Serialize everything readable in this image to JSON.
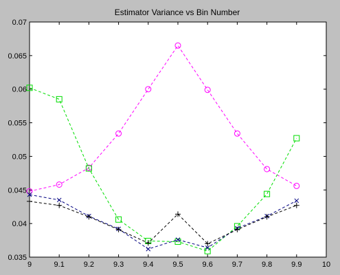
{
  "chart_data": {
    "type": "line",
    "title": "Estimator Variance vs Bin Number",
    "xlabel": "",
    "ylabel": "",
    "xlim": [
      9,
      10
    ],
    "ylim": [
      0.035,
      0.07
    ],
    "grid": false,
    "x_ticks": [
      "9",
      "9.1",
      "9.2",
      "9.3",
      "9.4",
      "9.5",
      "9.6",
      "9.7",
      "9.8",
      "9.9",
      "10"
    ],
    "y_ticks": [
      "0.035",
      "0.04",
      "0.045",
      "0.05",
      "0.055",
      "0.06",
      "0.065",
      "0.07"
    ],
    "x": [
      9.0,
      9.1,
      9.2,
      9.3,
      9.4,
      9.5,
      9.6,
      9.7,
      9.8,
      9.9
    ],
    "series": [
      {
        "color": "#ff00ff",
        "marker": "circle",
        "linestyle": "dashed",
        "values": [
          0.0448,
          0.0458,
          0.0483,
          0.0534,
          0.06,
          0.0665,
          0.0599,
          0.0534,
          0.0481,
          0.0456
        ]
      },
      {
        "color": "#00dd00",
        "marker": "square",
        "linestyle": "dashed",
        "values": [
          0.0602,
          0.0585,
          0.0482,
          0.0406,
          0.0374,
          0.0373,
          0.0359,
          0.0396,
          0.0444,
          0.0527
        ]
      },
      {
        "color": "#000080",
        "marker": "x",
        "linestyle": "dashed",
        "values": [
          0.0443,
          0.0435,
          0.0411,
          0.0392,
          0.0362,
          0.0376,
          0.0364,
          0.0393,
          0.0411,
          0.0434
        ]
      },
      {
        "color": "#000000",
        "marker": "plus",
        "linestyle": "dashed",
        "values": [
          0.0433,
          0.0427,
          0.041,
          0.0391,
          0.0371,
          0.0414,
          0.037,
          0.0391,
          0.041,
          0.0427
        ]
      }
    ]
  }
}
